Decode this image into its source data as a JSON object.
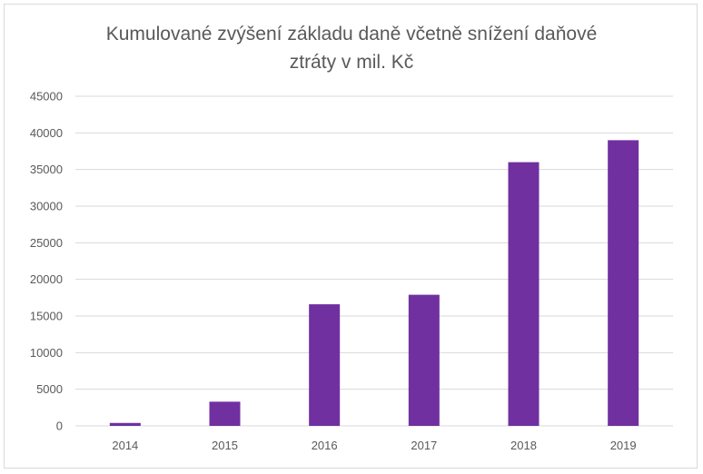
{
  "chart_data": {
    "type": "bar",
    "title_lines": [
      "Kumulované zvýšení základu daně včetně snížení daňové",
      "ztráty v mil. Kč"
    ],
    "categories": [
      "2014",
      "2015",
      "2016",
      "2017",
      "2018",
      "2019"
    ],
    "values": [
      400,
      3300,
      16600,
      17900,
      36000,
      39000
    ],
    "ylim": [
      0,
      45000
    ],
    "yticks": [
      "0",
      "5000",
      "10000",
      "15000",
      "20000",
      "25000",
      "30000",
      "35000",
      "40000",
      "45000"
    ],
    "grid": true,
    "legend": "none",
    "bar_color": "#7030a0",
    "grid_color": "#d9d9d9"
  }
}
